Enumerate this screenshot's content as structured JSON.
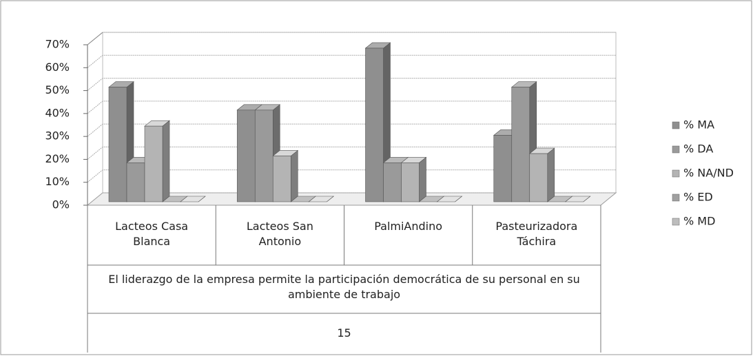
{
  "chart_data": {
    "type": "bar3d",
    "categories": [
      "Lacteos Casa Blanca",
      "Lacteos San Antonio",
      "PalmiAndino",
      "Pasteurizadora Táchira"
    ],
    "group_label": "El liderazgo de la empresa permite la participación democrática de su personal en su ambiente de trabajo",
    "group_number": "15",
    "series": [
      {
        "name": "% MA",
        "color": "#8f8f8f",
        "values": [
          50,
          40,
          67,
          29
        ]
      },
      {
        "name": "% DA",
        "color": "#9a9a9a",
        "values": [
          17,
          40,
          17,
          50
        ]
      },
      {
        "name": "% NA/ND",
        "color": "#b4b4b4",
        "values": [
          33,
          20,
          17,
          21
        ]
      },
      {
        "name": "% ED",
        "color": "#a0a0a0",
        "values": [
          0,
          0,
          0,
          0
        ]
      },
      {
        "name": "% MD",
        "color": "#bdbdbd",
        "values": [
          0,
          0,
          0,
          0
        ]
      }
    ],
    "ylim": [
      0,
      70
    ],
    "yticks": [
      {
        "value": 0,
        "label": "0%"
      },
      {
        "value": 10,
        "label": "10%"
      },
      {
        "value": 20,
        "label": "20%"
      },
      {
        "value": 30,
        "label": "30%"
      },
      {
        "value": 40,
        "label": "40%"
      },
      {
        "value": 50,
        "label": "50%"
      },
      {
        "value": 60,
        "label": "60%"
      },
      {
        "value": 70,
        "label": "70%"
      }
    ],
    "grid": true,
    "legend": "right"
  }
}
